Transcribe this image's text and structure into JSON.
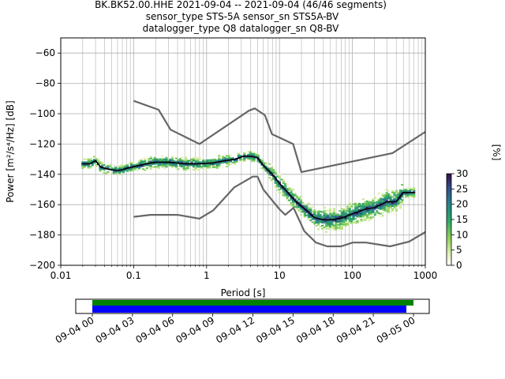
{
  "chart_data": [
    {
      "type": "heatmap",
      "title_lines": [
        "BK.BK52.00.HHE   2021-09-04 -- 2021-09-04  (46/46 segments)",
        "sensor_type STS-5A sensor_sn STS5A-BV",
        "datalogger_type Q8 datalogger_sn Q8-BV"
      ],
      "xlabel": "Period [s]",
      "ylabel": "Power [m²/s⁴/Hz] [dB]",
      "xscale": "log",
      "xlim": [
        0.01,
        1000
      ],
      "ylim": [
        -200,
        -50
      ],
      "x_ticks": [
        0.01,
        0.1,
        1,
        10,
        100,
        1000
      ],
      "x_tick_labels": [
        "0.01",
        "0.1",
        "1",
        "10",
        "100",
        "1000"
      ],
      "y_ticks": [
        -200,
        -180,
        -160,
        -140,
        -120,
        -100,
        -80,
        -60
      ],
      "y_tick_labels": [
        "−200",
        "−180",
        "−160",
        "−140",
        "−120",
        "−100",
        "−80",
        "−60"
      ],
      "grid": true,
      "colorbar": {
        "label": "[%]",
        "range": [
          0,
          30
        ],
        "ticks": [
          0,
          5,
          10,
          15,
          20,
          25,
          30
        ],
        "tick_labels": [
          "0",
          "5",
          "10",
          "15",
          "20",
          "25",
          "30"
        ]
      },
      "noise_model_high": {
        "x": [
          0.1,
          0.22,
          0.32,
          0.8,
          3.8,
          4.6,
          6.3,
          7.9,
          15.4,
          20,
          354.8,
          1000
        ],
        "y": [
          -91.5,
          -97.4,
          -110.5,
          -120,
          -98,
          -96.5,
          -101,
          -113.5,
          -120,
          -138.5,
          -126,
          -112
        ]
      },
      "noise_model_low": {
        "x": [
          0.1,
          0.17,
          0.4,
          0.8,
          1.24,
          2.4,
          4.3,
          5,
          6,
          10,
          12,
          15.6,
          21.9,
          31.6,
          45,
          70,
          101,
          154,
          328,
          600,
          1000
        ],
        "y": [
          -168,
          -166.7,
          -166.7,
          -169.2,
          -163.7,
          -148.6,
          -141.5,
          -141.5,
          -150,
          -163,
          -166.7,
          -162.1,
          -177.5,
          -185,
          -187.5,
          -187.5,
          -185,
          -185,
          -187.5,
          -184.4,
          -178
        ]
      },
      "mode_curve": {
        "x": [
          0.02,
          0.025,
          0.03,
          0.035,
          0.04,
          0.05,
          0.06,
          0.07,
          0.08,
          0.1,
          0.15,
          0.2,
          0.3,
          0.5,
          0.8,
          1.2,
          1.8,
          2.5,
          3.2,
          4,
          5,
          6,
          8,
          10,
          13,
          16,
          20,
          25,
          30,
          40,
          50,
          70,
          100,
          150,
          200,
          300,
          400,
          500,
          700
        ],
        "y": [
          -133,
          -133,
          -131,
          -135,
          -136,
          -137,
          -137.5,
          -137,
          -136,
          -135,
          -133,
          -132,
          -132,
          -133,
          -133,
          -132.5,
          -131,
          -130,
          -128,
          -128,
          -129,
          -134,
          -140,
          -146,
          -152,
          -157,
          -161,
          -165,
          -168.5,
          -170,
          -170,
          -169,
          -166,
          -163,
          -162,
          -158,
          -158,
          -152,
          -152
        ]
      },
      "time_coverage": {
        "x_tick_labels": [
          "09-04 00",
          "09-04 03",
          "09-04 06",
          "09-04 09",
          "09-04 12",
          "09-04 15",
          "09-04 18",
          "09-04 21",
          "09-05 00"
        ]
      }
    }
  ]
}
